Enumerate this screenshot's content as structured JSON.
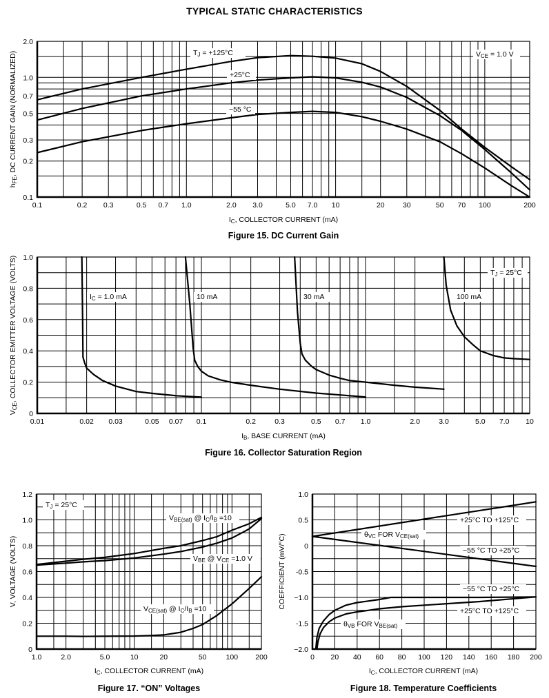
{
  "page": {
    "title": "TYPICAL STATIC CHARACTERISTICS"
  },
  "chart_data": [
    {
      "id": "fig15",
      "type": "line",
      "caption": "Figure 15. DC Current Gain",
      "xlabel": {
        "main": "I",
        "sub": "C",
        "rest": ", COLLECTOR CURRENT (mA)"
      },
      "ylabel": {
        "main": "h",
        "sub": "FE",
        "rest": ", DC CURRENT GAIN (NORMALIZED)"
      },
      "xscale": "log",
      "yscale": "log",
      "xlim": [
        0.1,
        200
      ],
      "ylim": [
        0.1,
        2.0
      ],
      "xticks": [
        {
          "v": 0.1,
          "label": "0.1"
        },
        {
          "v": 0.2,
          "label": "0.2"
        },
        {
          "v": 0.3,
          "label": "0.3"
        },
        {
          "v": 0.5,
          "label": "0.5"
        },
        {
          "v": 0.7,
          "label": "0.7"
        },
        {
          "v": 1.0,
          "label": "1.0"
        },
        {
          "v": 2.0,
          "label": "2.0"
        },
        {
          "v": 3.0,
          "label": "3.0"
        },
        {
          "v": 5.0,
          "label": "5.0"
        },
        {
          "v": 7.0,
          "label": "7.0"
        },
        {
          "v": 10,
          "label": "10"
        },
        {
          "v": 20,
          "label": "20"
        },
        {
          "v": 30,
          "label": "30"
        },
        {
          "v": 50,
          "label": "50"
        },
        {
          "v": 70,
          "label": "70"
        },
        {
          "v": 100,
          "label": "100"
        },
        {
          "v": 200,
          "label": "200"
        }
      ],
      "yticks": [
        {
          "v": 0.1,
          "label": "0.1"
        },
        {
          "v": 0.2,
          "label": "0.2"
        },
        {
          "v": 0.3,
          "label": "0.3"
        },
        {
          "v": 0.5,
          "label": "0.5"
        },
        {
          "v": 0.7,
          "label": "0.7"
        },
        {
          "v": 1.0,
          "label": "1.0"
        },
        {
          "v": 2.0,
          "label": "2.0"
        }
      ],
      "xgrid": [
        0.1,
        0.15,
        0.2,
        0.3,
        0.4,
        0.5,
        0.6,
        0.7,
        0.8,
        0.9,
        1,
        1.5,
        2,
        3,
        4,
        5,
        6,
        7,
        8,
        9,
        10,
        15,
        20,
        30,
        40,
        50,
        60,
        70,
        80,
        90,
        100,
        150,
        200
      ],
      "ygrid": [
        0.1,
        0.15,
        0.2,
        0.3,
        0.4,
        0.5,
        0.6,
        0.7,
        0.8,
        0.9,
        1.0,
        1.5,
        2.0
      ],
      "series": [
        {
          "name": "TJ = +125°C",
          "x": [
            0.1,
            0.2,
            0.5,
            1,
            2,
            3,
            5,
            7,
            10,
            15,
            20,
            30,
            50,
            70,
            100,
            150,
            200
          ],
          "y": [
            0.65,
            0.8,
            1.0,
            1.17,
            1.36,
            1.46,
            1.52,
            1.5,
            1.45,
            1.3,
            1.12,
            0.84,
            0.53,
            0.37,
            0.26,
            0.18,
            0.14
          ]
        },
        {
          "name": "+25°C",
          "x": [
            0.1,
            0.2,
            0.5,
            1,
            2,
            3,
            5,
            7,
            10,
            15,
            20,
            30,
            50,
            70,
            100,
            150,
            200
          ],
          "y": [
            0.44,
            0.55,
            0.7,
            0.8,
            0.9,
            0.95,
            0.99,
            1.01,
            0.99,
            0.91,
            0.83,
            0.68,
            0.48,
            0.36,
            0.25,
            0.16,
            0.115
          ]
        },
        {
          "name": "−55 °C",
          "x": [
            0.1,
            0.2,
            0.5,
            1,
            2,
            3,
            5,
            7,
            10,
            15,
            20,
            30,
            50,
            70,
            100,
            150,
            200
          ],
          "y": [
            0.235,
            0.29,
            0.36,
            0.41,
            0.46,
            0.49,
            0.51,
            0.52,
            0.51,
            0.47,
            0.43,
            0.37,
            0.29,
            0.23,
            0.175,
            0.125,
            0.1
          ]
        }
      ],
      "annotations": {
        "tj": {
          "main": "T",
          "sub": "J",
          "rest": " = +125°C"
        },
        "t25": "+25°C",
        "tm55": "−55 °C",
        "vce": {
          "main": "V",
          "sub": "CE",
          "rest": " = 1.0 V"
        }
      }
    },
    {
      "id": "fig16",
      "type": "line",
      "caption": "Figure 16. Collector Saturation Region",
      "xlabel": {
        "main": "I",
        "sub": "B",
        "rest": ", BASE CURRENT (mA)"
      },
      "ylabel": {
        "main": "V",
        "sub": "CE",
        "rest": ", COLLECTOR EMITTER VOLTAGE (VOLTS)"
      },
      "xscale": "log",
      "yscale": "linear",
      "xlim": [
        0.01,
        10
      ],
      "ylim": [
        0,
        1.0
      ],
      "xticks": [
        {
          "v": 0.01,
          "label": "0.01"
        },
        {
          "v": 0.02,
          "label": "0.02"
        },
        {
          "v": 0.03,
          "label": "0.03"
        },
        {
          "v": 0.05,
          "label": "0.05"
        },
        {
          "v": 0.07,
          "label": "0.07"
        },
        {
          "v": 0.1,
          "label": "0.1"
        },
        {
          "v": 0.2,
          "label": "0.2"
        },
        {
          "v": 0.3,
          "label": "0.3"
        },
        {
          "v": 0.5,
          "label": "0.5"
        },
        {
          "v": 0.7,
          "label": "0.7"
        },
        {
          "v": 1.0,
          "label": "1.0"
        },
        {
          "v": 2.0,
          "label": "2.0"
        },
        {
          "v": 3.0,
          "label": "3.0"
        },
        {
          "v": 5.0,
          "label": "5.0"
        },
        {
          "v": 7.0,
          "label": "7.0"
        },
        {
          "v": 10,
          "label": "10"
        }
      ],
      "yticks": [
        {
          "v": 0,
          "label": "0"
        },
        {
          "v": 0.2,
          "label": "0.2"
        },
        {
          "v": 0.4,
          "label": "0.4"
        },
        {
          "v": 0.6,
          "label": "0.6"
        },
        {
          "v": 0.8,
          "label": "0.8"
        },
        {
          "v": 1.0,
          "label": "1.0"
        }
      ],
      "xgrid": [
        0.01,
        0.015,
        0.02,
        0.03,
        0.04,
        0.05,
        0.06,
        0.07,
        0.08,
        0.09,
        0.1,
        0.15,
        0.2,
        0.3,
        0.4,
        0.5,
        0.6,
        0.7,
        0.8,
        0.9,
        1,
        1.5,
        2,
        3,
        4,
        5,
        6,
        7,
        8,
        9,
        10
      ],
      "ygrid": [
        0,
        0.1,
        0.2,
        0.3,
        0.4,
        0.5,
        0.6,
        0.7,
        0.8,
        0.9,
        1.0
      ],
      "series": [
        {
          "name": "IC = 1.0 mA",
          "x": [
            0.0187,
            0.0189,
            0.019,
            0.0195,
            0.02,
            0.022,
            0.025,
            0.03,
            0.04,
            0.05,
            0.07,
            0.1
          ],
          "y": [
            1.0,
            0.6,
            0.36,
            0.32,
            0.29,
            0.25,
            0.21,
            0.175,
            0.14,
            0.128,
            0.113,
            0.104
          ]
        },
        {
          "name": "10 mA",
          "x": [
            0.08,
            0.085,
            0.089,
            0.091,
            0.095,
            0.1,
            0.11,
            0.13,
            0.15,
            0.2,
            0.3,
            0.5,
            0.7,
            1.0
          ],
          "y": [
            1.0,
            0.7,
            0.42,
            0.34,
            0.3,
            0.27,
            0.24,
            0.215,
            0.2,
            0.18,
            0.155,
            0.13,
            0.118,
            0.105
          ]
        },
        {
          "name": "30 mA",
          "x": [
            0.37,
            0.385,
            0.4,
            0.41,
            0.43,
            0.47,
            0.5,
            0.6,
            0.7,
            0.8,
            1.0,
            1.5,
            2.0,
            3.0
          ],
          "y": [
            1.0,
            0.65,
            0.45,
            0.38,
            0.34,
            0.3,
            0.28,
            0.245,
            0.225,
            0.21,
            0.2,
            0.18,
            0.168,
            0.155
          ]
        },
        {
          "name": "100 mA",
          "x": [
            3.0,
            3.1,
            3.3,
            3.6,
            4.0,
            4.5,
            5.0,
            6.0,
            7.0,
            8.0,
            10
          ],
          "y": [
            1.0,
            0.82,
            0.66,
            0.56,
            0.49,
            0.44,
            0.4,
            0.37,
            0.355,
            0.35,
            0.345
          ]
        }
      ],
      "annotations": {
        "ic1": {
          "main": "I",
          "sub": "C",
          "rest": " = 1.0 mA"
        },
        "ic10": "10 mA",
        "ic30": "30 mA",
        "ic100": "100 mA",
        "tj": {
          "main": "T",
          "sub": "J",
          "rest": " = 25°C"
        }
      }
    },
    {
      "id": "fig17",
      "type": "line",
      "caption": "Figure 17. “ON” Voltages",
      "xlabel": {
        "main": "I",
        "sub": "C",
        "rest": ", COLLECTOR CURRENT (mA)"
      },
      "ylabel": {
        "main": "V, VOLTAGE (VOLTS)",
        "sub": "",
        "rest": ""
      },
      "xscale": "log",
      "yscale": "linear",
      "xlim": [
        1,
        200
      ],
      "ylim": [
        0,
        1.2
      ],
      "xticks": [
        {
          "v": 1,
          "label": "1.0"
        },
        {
          "v": 2,
          "label": "2.0"
        },
        {
          "v": 5,
          "label": "5.0"
        },
        {
          "v": 10,
          "label": "10"
        },
        {
          "v": 20,
          "label": "20"
        },
        {
          "v": 50,
          "label": "50"
        },
        {
          "v": 100,
          "label": "100"
        },
        {
          "v": 200,
          "label": "200"
        }
      ],
      "yticks": [
        {
          "v": 0,
          "label": "0"
        },
        {
          "v": 0.2,
          "label": "0.2"
        },
        {
          "v": 0.4,
          "label": "0.4"
        },
        {
          "v": 0.6,
          "label": "0.6"
        },
        {
          "v": 0.8,
          "label": "0.8"
        },
        {
          "v": 1.0,
          "label": "1.0"
        },
        {
          "v": 1.2,
          "label": "1.2"
        }
      ],
      "xgrid": [
        1,
        1.5,
        2,
        3,
        4,
        5,
        6,
        7,
        8,
        9,
        10,
        15,
        20,
        30,
        40,
        50,
        60,
        70,
        80,
        90,
        100,
        150,
        200
      ],
      "ygrid": [
        0,
        0.1,
        0.2,
        0.3,
        0.4,
        0.5,
        0.6,
        0.7,
        0.8,
        0.9,
        1.0,
        1.1,
        1.2
      ],
      "series": [
        {
          "name": "VBE(sat) @ IC/IB =10",
          "x": [
            1,
            2,
            3,
            5,
            10,
            20,
            30,
            50,
            70,
            100,
            150,
            200
          ],
          "y": [
            0.655,
            0.68,
            0.695,
            0.71,
            0.74,
            0.78,
            0.8,
            0.84,
            0.87,
            0.92,
            0.97,
            1.02
          ]
        },
        {
          "name": "VBE @ VCE =1.0 V",
          "x": [
            1,
            2,
            3,
            5,
            10,
            20,
            30,
            50,
            70,
            100,
            150,
            200
          ],
          "y": [
            0.65,
            0.665,
            0.675,
            0.685,
            0.705,
            0.735,
            0.755,
            0.79,
            0.82,
            0.86,
            0.93,
            1.01
          ]
        },
        {
          "name": "VCE(sat) @ IC/IB =10",
          "x": [
            1,
            2,
            3,
            5,
            10,
            15,
            20,
            30,
            40,
            50,
            70,
            100,
            150,
            200
          ],
          "y": [
            0.1,
            0.1,
            0.098,
            0.099,
            0.101,
            0.105,
            0.11,
            0.13,
            0.16,
            0.19,
            0.26,
            0.35,
            0.47,
            0.56
          ]
        }
      ],
      "annotations": {
        "tj": {
          "main": "T",
          "sub": "J",
          "rest": " = 25°C"
        },
        "vbesat": {
          "a": "V",
          "a_sub": "BE(sat)",
          "b": " @ I",
          "b_sub": "C",
          "c": "/I",
          "c_sub": "B",
          "d": " =10"
        },
        "vbe": {
          "a": "V",
          "a_sub": "BE",
          "b": " @ V",
          "b_sub": "CE",
          "c": " =1.0 V"
        },
        "vcesat": {
          "a": "V",
          "a_sub": "CE(sat)",
          "b": " @ I",
          "b_sub": "C",
          "c": "/I",
          "c_sub": "B",
          "d": " =10"
        }
      }
    },
    {
      "id": "fig18",
      "type": "line",
      "caption": "Figure 18. Temperature Coefficients",
      "xlabel": {
        "main": "I",
        "sub": "C",
        "rest": ", COLLECTOR CURRENT (mA)"
      },
      "ylabel": {
        "main": "COEFFICIENT (mV/°C)",
        "sub": "",
        "rest": ""
      },
      "xscale": "linear",
      "yscale": "linear",
      "xlim": [
        0,
        200
      ],
      "ylim": [
        -2.0,
        1.0
      ],
      "xticks": [
        {
          "v": 0,
          "label": "0"
        },
        {
          "v": 20,
          "label": "20"
        },
        {
          "v": 40,
          "label": "40"
        },
        {
          "v": 60,
          "label": "60"
        },
        {
          "v": 80,
          "label": "80"
        },
        {
          "v": 100,
          "label": "100"
        },
        {
          "v": 120,
          "label": "120"
        },
        {
          "v": 140,
          "label": "140"
        },
        {
          "v": 160,
          "label": "160"
        },
        {
          "v": 180,
          "label": "180"
        },
        {
          "v": 200,
          "label": "200"
        }
      ],
      "yticks": [
        {
          "v": 1.0,
          "label": "1.0"
        },
        {
          "v": 0.5,
          "label": "0.5"
        },
        {
          "v": 0,
          "label": "0"
        },
        {
          "v": -0.5,
          "label": "-0.5"
        },
        {
          "v": -1.0,
          "label": "−1.0"
        },
        {
          "v": -1.5,
          "label": "-1.5"
        },
        {
          "v": -2.0,
          "label": "−2.0"
        }
      ],
      "xgrid": [
        0,
        20,
        40,
        60,
        80,
        100,
        120,
        140,
        160,
        180,
        200
      ],
      "ygrid": [
        -2.0,
        -1.75,
        -1.5,
        -1.25,
        -1.0,
        -0.75,
        -0.5,
        -0.25,
        0,
        0.25,
        0.5,
        0.75,
        1.0
      ],
      "series": [
        {
          "name": "θVC +25°C TO +125°C",
          "x": [
            0,
            200
          ],
          "y": [
            0.18,
            0.85
          ]
        },
        {
          "name": "θVC −55 °C TO +25°C",
          "x": [
            0,
            200
          ],
          "y": [
            0.18,
            -0.4
          ]
        },
        {
          "name": "θVB −55 °C TO +25°C",
          "x": [
            3,
            4,
            6,
            10,
            15,
            20,
            30,
            40,
            50,
            60,
            70,
            100,
            150,
            200
          ],
          "y": [
            -2.0,
            -1.78,
            -1.6,
            -1.45,
            -1.33,
            -1.25,
            -1.15,
            -1.1,
            -1.07,
            -1.04,
            -1.0,
            -1.0,
            -1.0,
            -0.99
          ]
        },
        {
          "name": "θVB +25°C TO +125°C",
          "x": [
            4,
            5,
            7,
            10,
            15,
            20,
            30,
            40,
            50,
            60,
            80,
            100,
            150,
            200
          ],
          "y": [
            -2.0,
            -1.85,
            -1.7,
            -1.58,
            -1.47,
            -1.4,
            -1.32,
            -1.28,
            -1.25,
            -1.22,
            -1.18,
            -1.15,
            -1.08,
            -0.99
          ]
        }
      ],
      "annotations": {
        "vc_hi": "+25°C TO +125°C",
        "vc_theta": {
          "a": "θ",
          "a_sub": "VC",
          "b": " FOR V",
          "b_sub": "CE(sat)"
        },
        "vc_lo": "−55 °C TO +25°C",
        "vb_lo": "−55 °C TO +25°C",
        "vb_hi": "+25°C TO +125°C",
        "vb_theta": {
          "a": "θ",
          "a_sub": "VB",
          "b": " FOR V",
          "b_sub": "BE(sat)"
        }
      }
    }
  ]
}
